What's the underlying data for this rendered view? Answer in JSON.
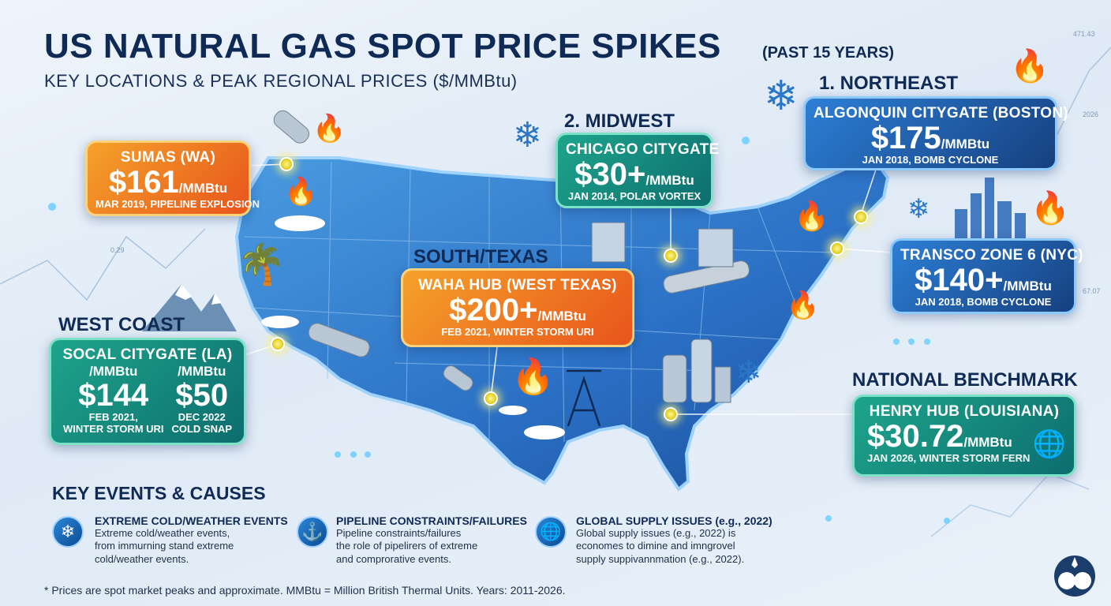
{
  "header": {
    "title": "US NATURAL GAS SPOT PRICE SPIKES",
    "title_suffix": "(PAST 15 YEARS)",
    "subtitle": "KEY LOCATIONS & PEAK REGIONAL PRICES ($/MMBtu)"
  },
  "regions": {
    "northeast": "1. NORTHEAST",
    "midwest": "2. MIDWEST",
    "south": "SOUTH/TEXAS",
    "west": "WEST COAST",
    "national": "NATIONAL BENCHMARK"
  },
  "cards": {
    "sumas": {
      "location": "SUMAS (WA)",
      "price": "$161",
      "unit": "/MMBtu",
      "event": "MAR 2019, PIPELINE EXPLOSION"
    },
    "chicago": {
      "location": "CHICAGO CITYGATE",
      "price": "$30+",
      "unit": "/MMBtu",
      "event": "JAN 2014, POLAR VORTEX"
    },
    "algonquin": {
      "location": "ALGONQUIN CITYGATE (BOSTON)",
      "price": "$175",
      "unit": "/MMBtu",
      "event": "JAN 2018, BOMB CYCLONE"
    },
    "transco": {
      "location": "TRANSCO ZONE 6 (NYC)",
      "price": "$140+",
      "unit": "/MMBtu",
      "event": "JAN 2018, BOMB CYCLONE"
    },
    "waha": {
      "location": "WAHA HUB (WEST TEXAS)",
      "price": "$200+",
      "unit": "/MMBtu",
      "event": "FEB 2021, WINTER STORM URI"
    },
    "socal": {
      "location": "SOCAL CITYGATE (LA)",
      "unit_left": "/MMBtu",
      "unit_right": "/MMBtu",
      "price_left": "$144",
      "price_right": "$50",
      "event_left_1": "FEB 2021,",
      "event_left_2": "WINTER STORM URI",
      "event_right_1": "DEC 2022",
      "event_right_2": "COLD SNAP"
    },
    "henry": {
      "location": "HENRY HUB (LOUISIANA)",
      "price": "$30.72",
      "unit": "/MMBtu",
      "event": "JAN 2026, WINTER STORM FERN"
    }
  },
  "events_section": {
    "title": "KEY EVENTS & CAUSES",
    "items": [
      {
        "icon": "snowflake-icon",
        "title": "EXTREME COLD/WEATHER EVENTS",
        "line1": "Extreme cold/weather events,",
        "line2": "from immurning stand extreme",
        "line3": "cold/weather events."
      },
      {
        "icon": "pipeline-icon",
        "title": "PIPELINE CONSTRAINTS/FAILURES",
        "line1": "Pipeline constraints/failures",
        "line2": "the role of pipelirers of extreme",
        "line3": "and comprorative events."
      },
      {
        "icon": "globe-icon",
        "title": "GLOBAL SUPPLY ISSUES (e.g., 2022)",
        "line1": "Global supply issues (e.g., 2022) is",
        "line2": "economes to dimine and imngrovel",
        "line3": "supply suppivannmation (e.g., 2022)."
      }
    ]
  },
  "footnote": "* Prices are spot market peaks and approximate. MMBtu = Million British Thermal Units. Years: 2011-2026.",
  "decor": {
    "tick_top": "471.43",
    "tick_right": "2026",
    "tick_left": "0.29",
    "tick_right2": "67.07"
  },
  "colors": {
    "orange": "#e8541c",
    "teal": "#0d6d6e",
    "blue": "#16407f",
    "navy": "#0f2a55",
    "marker": "#e8d62a"
  }
}
